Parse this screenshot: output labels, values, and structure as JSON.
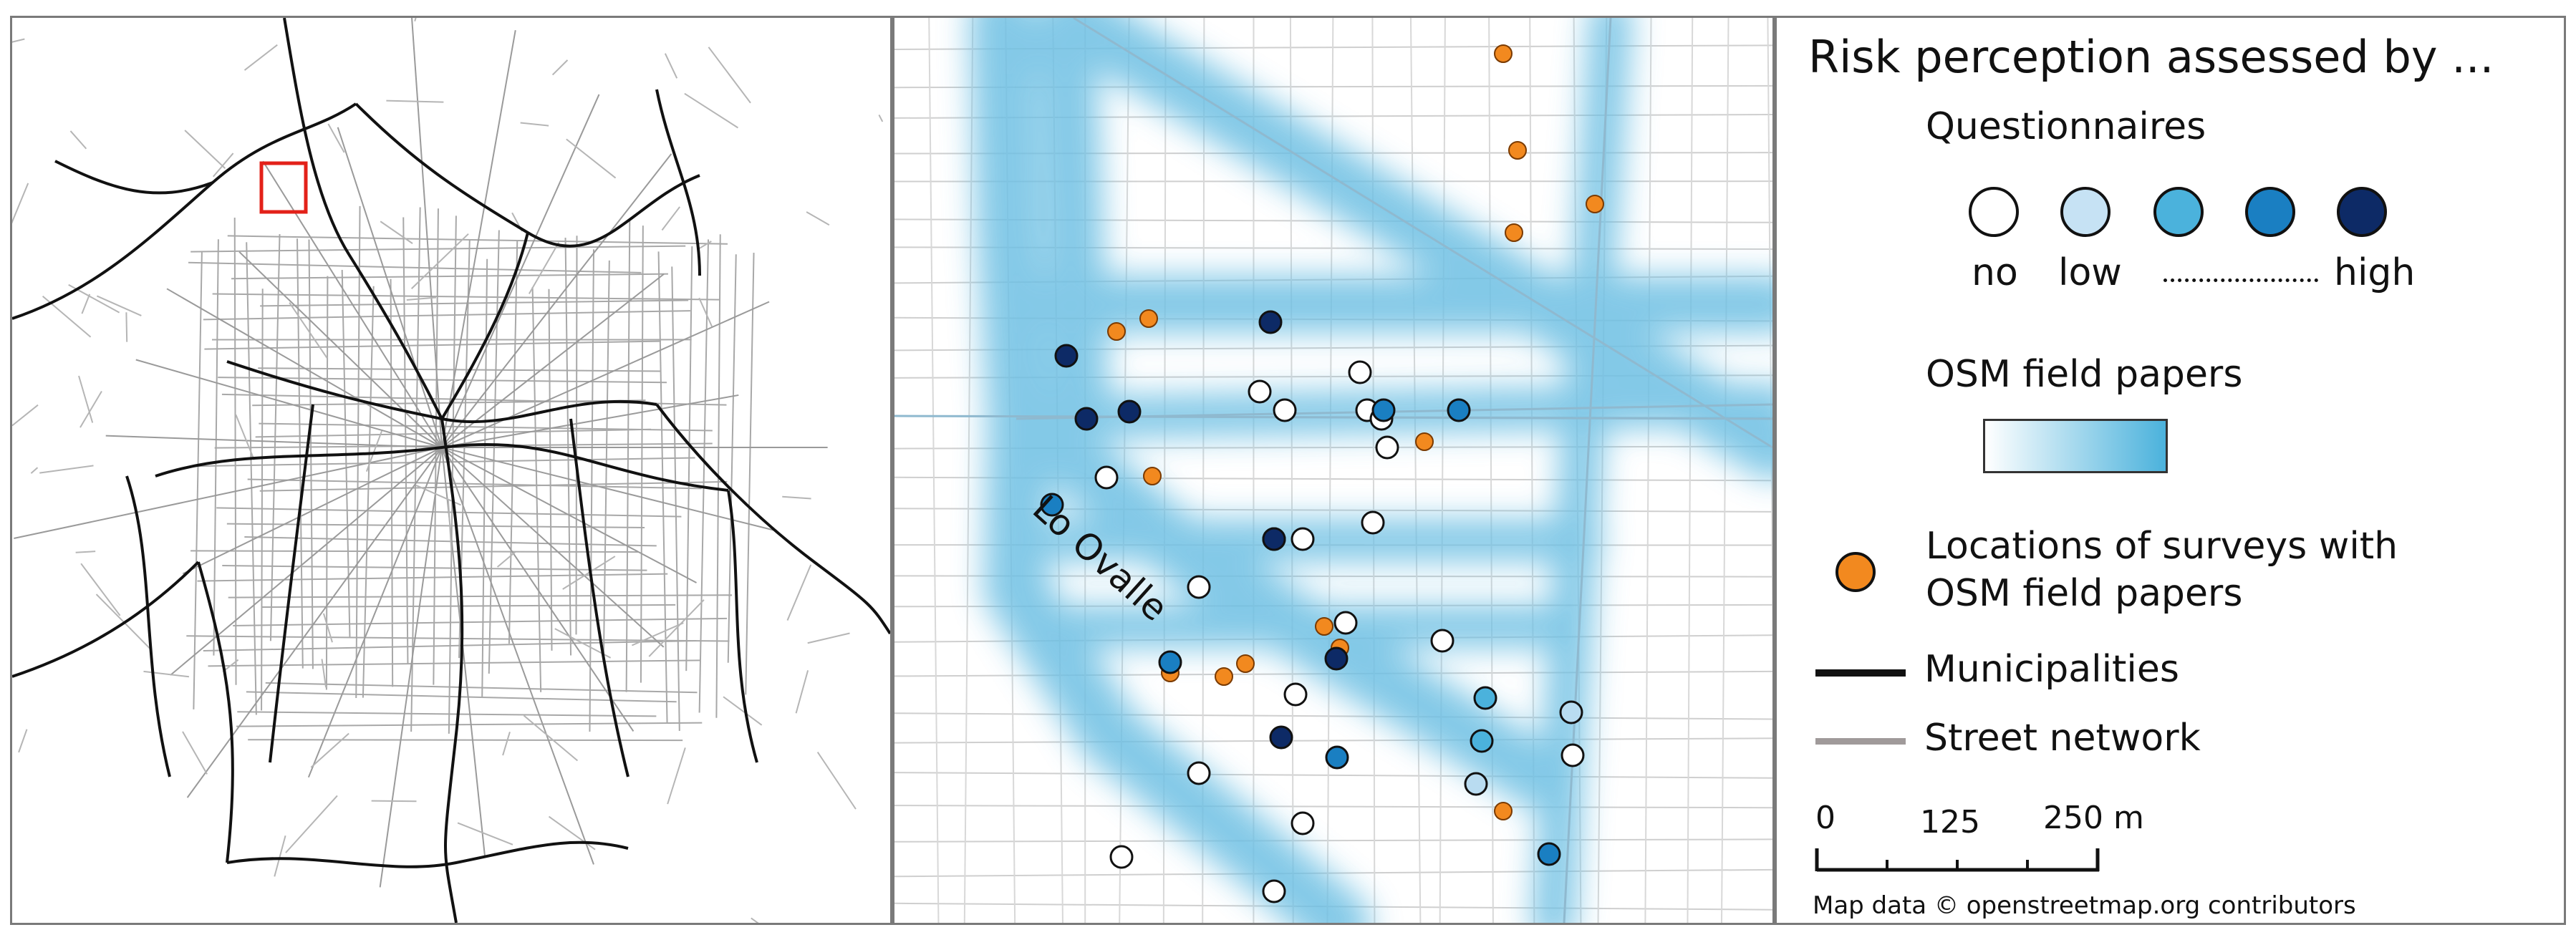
{
  "overview_map": {
    "highlight_box_color": "#e32119"
  },
  "detail_map": {
    "street_label": "Lo Ovalle",
    "risk_gradient_color": "#6ec0e3",
    "questionnaire_points": [
      {
        "level": "high",
        "color": "#0d2a66"
      },
      {
        "level": "high",
        "color": "#0d2a66"
      },
      {
        "level": "high",
        "color": "#0d2a66"
      },
      {
        "level": "high",
        "color": "#0d2a66"
      },
      {
        "level": "high",
        "color": "#0d2a66"
      },
      {
        "level": "high",
        "color": "#0d2a66"
      },
      {
        "level": "high",
        "color": "#0d2a66"
      },
      {
        "level": "level3",
        "color": "#1a7fc2"
      },
      {
        "level": "level3",
        "color": "#1a7fc2"
      },
      {
        "level": "level3",
        "color": "#1a7fc2"
      },
      {
        "level": "level3",
        "color": "#1a7fc2"
      },
      {
        "level": "level3",
        "color": "#1a7fc2"
      },
      {
        "level": "level3",
        "color": "#1a7fc2"
      },
      {
        "level": "level2",
        "color": "#4bb2dc"
      },
      {
        "level": "level2",
        "color": "#4bb2dc"
      },
      {
        "level": "low",
        "color": "#b9dcf1"
      },
      {
        "level": "low",
        "color": "#b9dcf1"
      }
    ],
    "survey_location_color": "#f2891f"
  },
  "legend": {
    "title": "Risk perception assessed by ...",
    "questionnaires_label": "Questionnaires",
    "questionnaire_classes": [
      {
        "color": "#ffffff"
      },
      {
        "color": "#c6e2f4"
      },
      {
        "color": "#4bb2dc"
      },
      {
        "color": "#1a7fc2"
      },
      {
        "color": "#0d2a66"
      }
    ],
    "scale_no": "no",
    "scale_low": "low",
    "scale_high": "high",
    "field_papers_label": "OSM field papers",
    "field_papers_gradient": [
      "#ffffff",
      "#4bb2dc"
    ],
    "survey_locations_line1": "Locations of surveys with",
    "survey_locations_line2": "OSM field papers",
    "survey_locations_color": "#f2891f",
    "municipalities_label": "Municipalities",
    "municipalities_color": "#111111",
    "street_network_label": "Street network",
    "street_network_color": "#a09a9a",
    "scale_bar": {
      "ticks": [
        "0",
        "125",
        "250 m"
      ]
    },
    "credit": "Map data © openstreetmap.org contributors"
  }
}
